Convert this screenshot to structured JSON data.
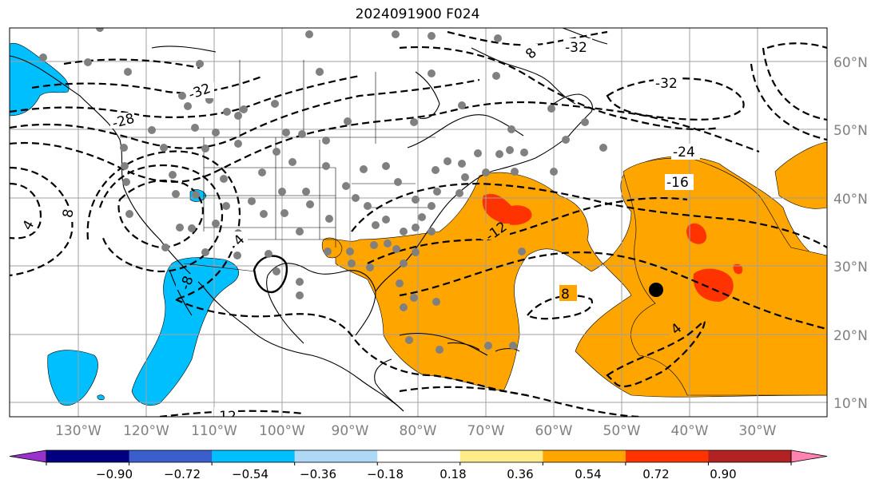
{
  "title": "2024091900 F024",
  "map": {
    "projection": "PlateCarree",
    "lon_range": [
      -140,
      -20
    ],
    "lat_range": [
      7,
      65
    ],
    "lat_ticks": [
      "60°N",
      "50°N",
      "40°N",
      "30°N",
      "20°N",
      "10°N"
    ],
    "lon_ticks": [
      "130°W",
      "120°W",
      "110°W",
      "100°W",
      "90°W",
      "80°W",
      "70°W",
      "60°W",
      "50°W",
      "40°W",
      "30°W"
    ],
    "gridlines": true
  },
  "contour_labels": [
    "-32",
    "-32",
    "-32",
    "-28",
    "-24",
    "-16",
    "-12",
    "8",
    "4",
    "4",
    "-8",
    "8",
    "-12",
    "8",
    "4"
  ],
  "colorbar": {
    "ticks": [
      "−0.90",
      "−0.72",
      "−0.54",
      "−0.36",
      "−0.18",
      "0.18",
      "0.36",
      "0.54",
      "0.72",
      "0.90"
    ],
    "colors": [
      "#9932cc",
      "#000080",
      "#3a5fcd",
      "#00bfff",
      "#add8f6",
      "#ffffff",
      "#ffeb8a",
      "#ffa500",
      "#ff3300",
      "#b22222",
      "#ff82b0"
    ],
    "extend": "both"
  },
  "colors": {
    "orange": "#ffa500",
    "red": "#ff3300",
    "lightblue": "#00bfff",
    "station_dot": "#808080",
    "marker": "#000000"
  }
}
